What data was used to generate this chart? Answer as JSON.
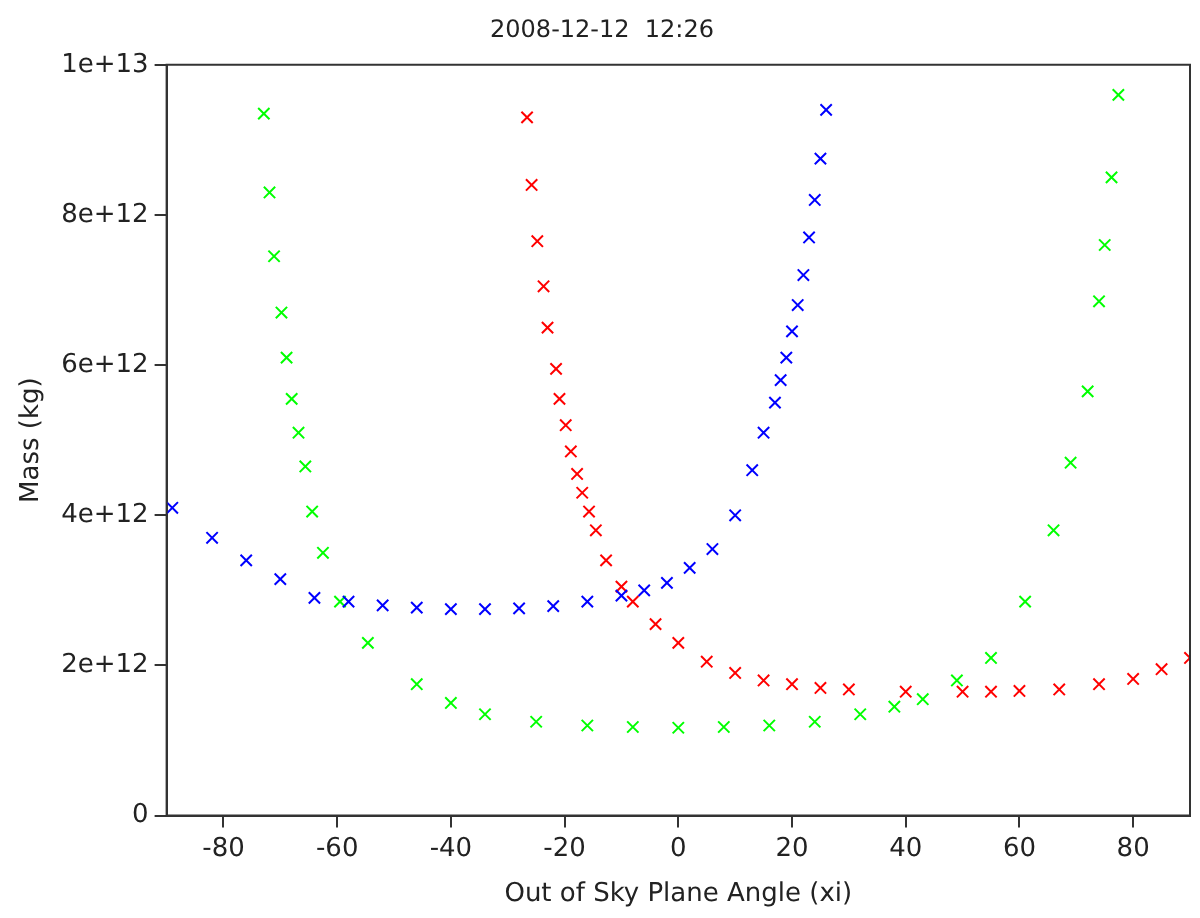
{
  "chart_data": {
    "type": "scatter",
    "title": "2008-12-12  12:26",
    "xlabel": "Out of Sky Plane Angle (xi)",
    "ylabel": "Mass (kg)",
    "xlim": [
      -90,
      90
    ],
    "ylim": [
      0,
      10000000000000.0
    ],
    "xticks": [
      -80,
      -60,
      -40,
      -20,
      0,
      20,
      40,
      60,
      80
    ],
    "yticks": [
      {
        "value": 0,
        "label": "0"
      },
      {
        "value": 2000000000000.0,
        "label": "2e+12"
      },
      {
        "value": 4000000000000.0,
        "label": "4e+12"
      },
      {
        "value": 6000000000000.0,
        "label": "6e+12"
      },
      {
        "value": 8000000000000.0,
        "label": "8e+12"
      },
      {
        "value": 10000000000000.0,
        "label": "1e+13"
      }
    ],
    "grid": false,
    "legend": false,
    "series": [
      {
        "color": "#0000ff",
        "marker": "cross",
        "x": [
          -89,
          -82,
          -76,
          -70,
          -64,
          -58,
          -52,
          -46,
          -40,
          -34,
          -28,
          -22,
          -16,
          -10,
          -6,
          -2,
          2,
          6,
          10,
          13,
          15,
          17,
          18,
          19,
          20,
          21,
          22,
          23,
          24,
          25,
          26
        ],
        "values": [
          4100000000000.0,
          3700000000000.0,
          3400000000000.0,
          3150000000000.0,
          2900000000000.0,
          2850000000000.0,
          2800000000000.0,
          2770000000000.0,
          2750000000000.0,
          2750000000000.0,
          2760000000000.0,
          2790000000000.0,
          2850000000000.0,
          2930000000000.0,
          3000000000000.0,
          3100000000000.0,
          3300000000000.0,
          3550000000000.0,
          4000000000000.0,
          4600000000000.0,
          5100000000000.0,
          5500000000000.0,
          5800000000000.0,
          6100000000000.0,
          6450000000000.0,
          6800000000000.0,
          7200000000000.0,
          7700000000000.0,
          8200000000000.0,
          8750000000000.0,
          9400000000000.0
        ]
      },
      {
        "color": "#ff0000",
        "marker": "cross",
        "x": [
          -26.6,
          -25.8,
          -24.8,
          -23.7,
          -23,
          -21.5,
          -20.9,
          -19.8,
          -18.9,
          -17.8,
          -16.9,
          -15.7,
          -14.5,
          -12.7,
          -10,
          -8,
          -4,
          0,
          5,
          10,
          15,
          20,
          25,
          30,
          40,
          50,
          55,
          60,
          67,
          74,
          80,
          85,
          90
        ],
        "values": [
          9300000000000.0,
          8400000000000.0,
          7650000000000.0,
          7050000000000.0,
          6500000000000.0,
          5950000000000.0,
          5550000000000.0,
          5200000000000.0,
          4850000000000.0,
          4550000000000.0,
          4300000000000.0,
          4050000000000.0,
          3800000000000.0,
          3400000000000.0,
          3050000000000.0,
          2850000000000.0,
          2550000000000.0,
          2300000000000.0,
          2050000000000.0,
          1900000000000.0,
          1800000000000.0,
          1750000000000.0,
          1700000000000.0,
          1680000000000.0,
          1650000000000.0,
          1650000000000.0,
          1650000000000.0,
          1660000000000.0,
          1680000000000.0,
          1750000000000.0,
          1820000000000.0,
          1950000000000.0,
          2100000000000.0
        ]
      },
      {
        "color": "#00ff00",
        "marker": "cross",
        "x": [
          -72.9,
          -71.9,
          -71.1,
          -69.8,
          -68.9,
          -68,
          -66.8,
          -65.6,
          -64.4,
          -62.5,
          -59.5,
          -54.6,
          -46,
          -40,
          -34,
          -25,
          -16,
          -8,
          0,
          8,
          16,
          24,
          32,
          38,
          43,
          49,
          55,
          61,
          66,
          69,
          72,
          74,
          75,
          76.2,
          77.4
        ],
        "values": [
          9350000000000.0,
          8300000000000.0,
          7450000000000.0,
          6700000000000.0,
          6100000000000.0,
          5550000000000.0,
          5100000000000.0,
          4650000000000.0,
          4050000000000.0,
          3500000000000.0,
          2850000000000.0,
          2300000000000.0,
          1750000000000.0,
          1500000000000.0,
          1350000000000.0,
          1250000000000.0,
          1200000000000.0,
          1180000000000.0,
          1170000000000.0,
          1180000000000.0,
          1200000000000.0,
          1250000000000.0,
          1350000000000.0,
          1450000000000.0,
          1550000000000.0,
          1800000000000.0,
          2100000000000.0,
          2850000000000.0,
          3800000000000.0,
          4700000000000.0,
          5650000000000.0,
          6850000000000.0,
          7600000000000.0,
          8500000000000.0,
          9600000000000.0
        ]
      }
    ]
  }
}
